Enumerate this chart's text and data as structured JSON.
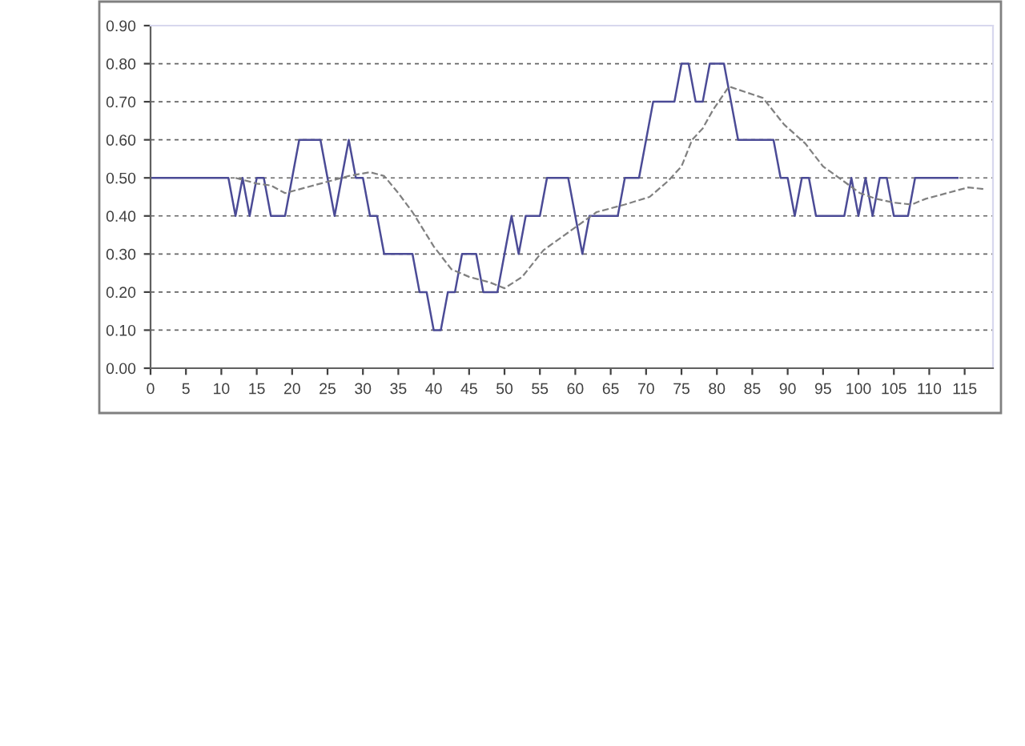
{
  "chart_data": {
    "type": "line",
    "grid": "y",
    "marker": "none",
    "xlim": [
      0,
      119
    ],
    "xticks": [
      0,
      5,
      10,
      15,
      20,
      25,
      30,
      35,
      40,
      45,
      50,
      55,
      60,
      65,
      70,
      75,
      80,
      85,
      90,
      95,
      100,
      105,
      110,
      115
    ],
    "ylim": [
      0,
      0.9
    ],
    "yticks": [
      {
        "value": 0,
        "label": "0.00"
      },
      {
        "value": 0.1,
        "label": "0.10"
      },
      {
        "value": 0.2,
        "label": "0.20"
      },
      {
        "value": 0.3,
        "label": "0.30"
      },
      {
        "value": 0.4,
        "label": "0.40"
      },
      {
        "value": 0.5,
        "label": "0.50"
      },
      {
        "value": 0.6,
        "label": "0.60"
      },
      {
        "value": 0.7,
        "label": "0.70"
      },
      {
        "value": 0.8,
        "label": "0.80"
      },
      {
        "value": 0.9,
        "label": "0.90"
      }
    ],
    "series": [
      {
        "color": "#4b4b96",
        "line_style": "solid",
        "x": [
          0,
          1,
          2,
          3,
          4,
          5,
          6,
          7,
          8,
          9,
          10,
          11,
          12,
          13,
          14,
          15,
          16,
          17,
          18,
          19,
          20,
          21,
          22,
          23,
          24,
          25,
          26,
          27,
          28,
          29,
          30,
          31,
          32,
          33,
          34,
          35,
          36,
          37,
          38,
          39,
          40,
          41,
          42,
          43,
          44,
          45,
          46,
          47,
          48,
          49,
          50,
          51,
          52,
          53,
          54,
          55,
          56,
          57,
          58,
          59,
          60,
          61,
          62,
          63,
          64,
          65,
          66,
          67,
          68,
          69,
          70,
          71,
          72,
          73,
          74,
          75,
          76,
          77,
          78,
          79,
          80,
          81,
          82,
          83,
          84,
          85,
          86,
          87,
          88,
          89,
          90,
          91,
          92,
          93,
          94,
          95,
          96,
          97,
          98,
          99,
          100,
          101,
          102,
          103,
          104,
          105,
          106,
          107,
          108,
          109,
          110,
          111,
          112,
          113,
          114
        ],
        "values": [
          0.5,
          0.5,
          0.5,
          0.5,
          0.5,
          0.5,
          0.5,
          0.5,
          0.5,
          0.5,
          0.5,
          0.5,
          0.4,
          0.5,
          0.4,
          0.5,
          0.5,
          0.4,
          0.4,
          0.4,
          0.5,
          0.6,
          0.6,
          0.6,
          0.6,
          0.5,
          0.4,
          0.5,
          0.6,
          0.5,
          0.5,
          0.4,
          0.4,
          0.3,
          0.3,
          0.3,
          0.3,
          0.3,
          0.2,
          0.2,
          0.1,
          0.1,
          0.2,
          0.2,
          0.3,
          0.3,
          0.3,
          0.2,
          0.2,
          0.2,
          0.3,
          0.4,
          0.3,
          0.4,
          0.4,
          0.4,
          0.5,
          0.5,
          0.5,
          0.5,
          0.4,
          0.3,
          0.4,
          0.4,
          0.4,
          0.4,
          0.4,
          0.5,
          0.5,
          0.5,
          0.6,
          0.7,
          0.7,
          0.7,
          0.7,
          0.8,
          0.8,
          0.7,
          0.7,
          0.8,
          0.8,
          0.8,
          0.7,
          0.6,
          0.6,
          0.6,
          0.6,
          0.6,
          0.6,
          0.5,
          0.5,
          0.4,
          0.5,
          0.5,
          0.4,
          0.4,
          0.4,
          0.4,
          0.4,
          0.5,
          0.4,
          0.5,
          0.4,
          0.5,
          0.5,
          0.4,
          0.4,
          0.4,
          0.5,
          0.5,
          0.5,
          0.5,
          0.5,
          0.5,
          0.5
        ]
      },
      {
        "color": "#808080",
        "line_style": "dashed",
        "x": [
          12,
          15,
          17,
          19,
          22,
          25,
          28,
          31,
          33,
          35,
          37,
          40,
          42.5,
          45,
          48,
          50,
          52.5,
          55.5,
          58.5,
          61.5,
          63,
          67,
          70.5,
          73,
          75,
          76.5,
          78,
          79.5,
          81.7,
          86.5,
          89.5,
          92.5,
          95,
          98,
          100.2,
          102.5,
          105,
          107.5,
          109.5,
          112.5,
          115.5,
          118
        ],
        "values": [
          0.5,
          0.485,
          0.48,
          0.46,
          0.475,
          0.49,
          0.505,
          0.515,
          0.505,
          0.46,
          0.41,
          0.32,
          0.26,
          0.24,
          0.225,
          0.21,
          0.24,
          0.31,
          0.35,
          0.39,
          0.41,
          0.43,
          0.45,
          0.49,
          0.53,
          0.6,
          0.63,
          0.68,
          0.74,
          0.71,
          0.64,
          0.59,
          0.53,
          0.49,
          0.46,
          0.445,
          0.435,
          0.43,
          0.445,
          0.46,
          0.475,
          0.47
        ]
      }
    ]
  }
}
